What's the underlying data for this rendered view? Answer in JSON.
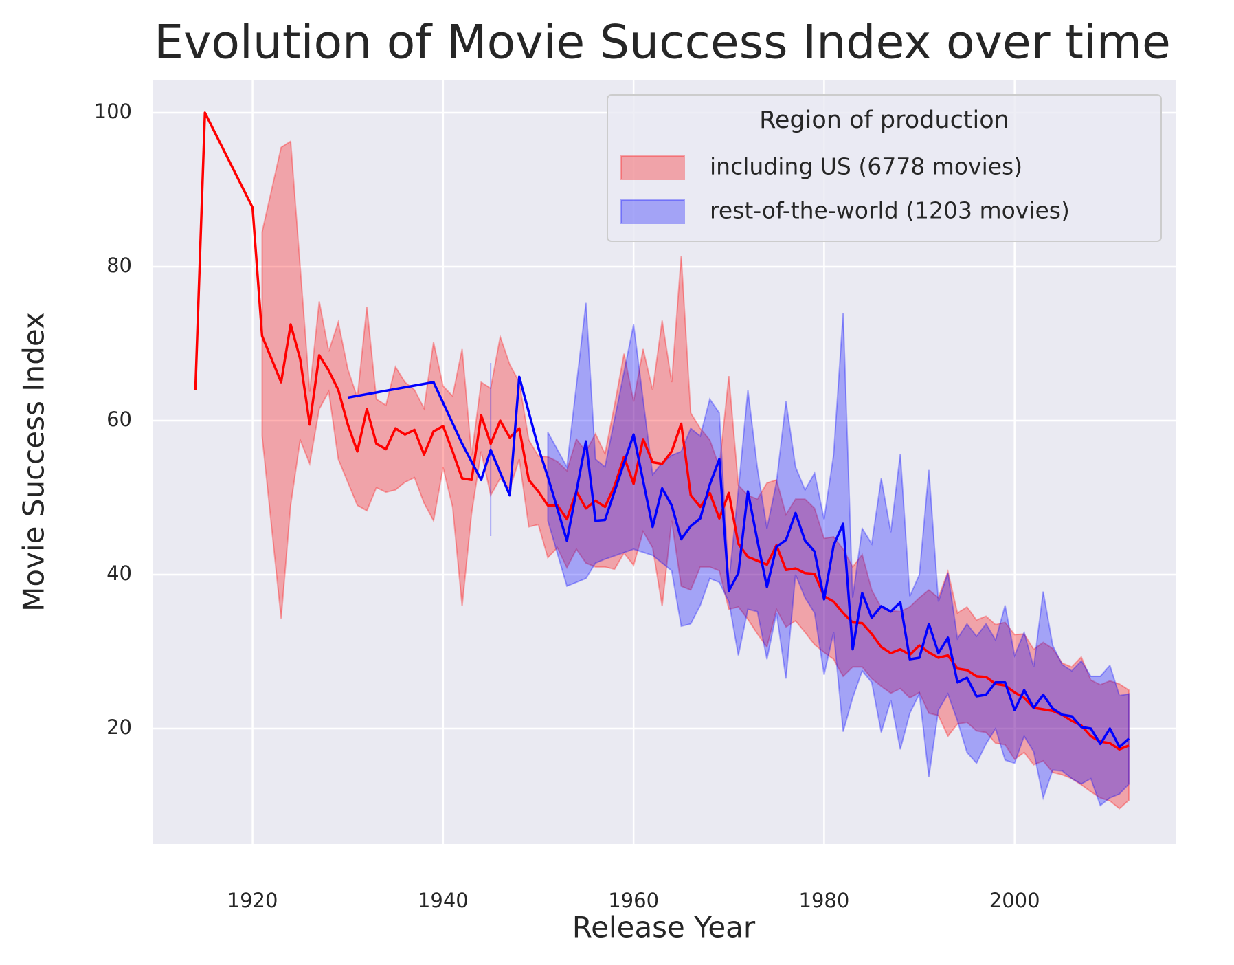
{
  "chart_data": {
    "type": "line_band",
    "title": "Evolution of Movie Success Index over time",
    "xlabel": "Release Year",
    "ylabel": "Movie Success Index",
    "legend_title": "Region of production",
    "legend_position": "upper right",
    "grid": true,
    "xlim": [
      1909.5,
      2016.9
    ],
    "ylim": [
      5,
      104.2
    ],
    "xticks": [
      1920,
      1940,
      1960,
      1980,
      2000
    ],
    "yticks": [
      20,
      40,
      60,
      80,
      100
    ],
    "series": [
      {
        "name": "including US (6778 movies)",
        "color": "#ff0000",
        "x": [
          1914,
          1915,
          1920,
          1921,
          1923,
          1924,
          1925,
          1926,
          1927,
          1928,
          1929,
          1930,
          1931,
          1932,
          1933,
          1934,
          1935,
          1936,
          1937,
          1938,
          1939,
          1940,
          1941,
          1942,
          1943,
          1944,
          1945,
          1946,
          1947,
          1948,
          1949,
          1950,
          1951,
          1952,
          1953,
          1954,
          1955,
          1956,
          1957,
          1958,
          1959,
          1960,
          1961,
          1962,
          1963,
          1964,
          1965,
          1966,
          1967,
          1968,
          1969,
          1970,
          1971,
          1972,
          1973,
          1974,
          1975,
          1976,
          1977,
          1978,
          1979,
          1980,
          1981,
          1982,
          1983,
          1984,
          1985,
          1986,
          1987,
          1988,
          1989,
          1990,
          1991,
          1992,
          1993,
          1994,
          1995,
          1996,
          1997,
          1998,
          1999,
          2000,
          2001,
          2002,
          2003,
          2004,
          2005,
          2006,
          2007,
          2008,
          2009,
          2010,
          2011,
          2012
        ],
        "values": [
          64,
          100,
          87.7,
          71,
          65,
          72.5,
          68,
          59.5,
          68.5,
          66.5,
          64,
          59.5,
          56,
          61.5,
          57,
          56.3,
          59,
          58.2,
          58.8,
          55.6,
          58.6,
          59.3,
          56,
          52.5,
          52.3,
          60.7,
          57,
          60,
          57.8,
          59,
          52.3,
          50.8,
          49,
          49,
          47.2,
          50.8,
          48.6,
          49.6,
          48.8,
          51.5,
          55.3,
          51.8,
          57.6,
          54.6,
          54.4,
          56,
          59.6,
          50.3,
          48.8,
          50.6,
          47.3,
          50.6,
          44,
          42.3,
          41.8,
          41.3,
          43.8,
          40.6,
          40.8,
          40.2,
          40.1,
          37.2,
          36.5,
          35,
          33.8,
          33.7,
          32.3,
          30.6,
          29.8,
          30.3,
          29.6,
          30.8,
          29.9,
          29.2,
          29.5,
          27.8,
          27.6,
          26.8,
          26.7,
          25.8,
          25.6,
          24.7,
          24,
          22.7,
          22.5,
          22.3,
          21.8,
          21,
          20.4,
          19,
          18.3,
          18.1,
          17.3,
          17.8
        ],
        "lower": [
          null,
          null,
          null,
          58,
          34.3,
          49,
          57.5,
          54.4,
          61.5,
          63.8,
          55,
          52,
          49,
          48.3,
          51.3,
          50.7,
          51,
          52,
          52.6,
          49.3,
          47,
          53.9,
          48.8,
          35.9,
          48,
          56,
          50.3,
          52.5,
          51.1,
          55,
          46.2,
          46.5,
          42.2,
          43.5,
          40.9,
          43.3,
          41.5,
          41,
          41,
          40.7,
          42.8,
          41.2,
          45.6,
          43.5,
          35.9,
          47,
          38.5,
          38,
          41,
          41,
          40.5,
          35.5,
          35.8,
          34.2,
          32.3,
          30.6,
          35.5,
          33.2,
          34,
          32.5,
          30.9,
          29.9,
          29,
          26.8,
          28,
          28,
          26.5,
          25.5,
          24.6,
          25.2,
          24,
          24.7,
          22,
          21.7,
          19,
          20.6,
          20.8,
          19.7,
          19.5,
          18.1,
          17.9,
          16,
          16.9,
          15.3,
          15.8,
          14.3,
          14,
          13.5,
          12.7,
          11.8,
          11,
          10.6,
          9.6,
          10.7
        ],
        "upper": [
          null,
          null,
          null,
          84.5,
          95.5,
          96.3,
          80,
          63.8,
          75.5,
          69,
          72.8,
          66.7,
          63,
          74.8,
          62.8,
          62,
          67,
          65,
          64,
          61.6,
          70.2,
          64.5,
          63.2,
          69.3,
          55.5,
          65,
          64.2,
          70.9,
          67.3,
          65,
          57.5,
          55.4,
          55.3,
          54.7,
          53.5,
          57.6,
          56,
          58.3,
          55.7,
          62,
          68.7,
          62.5,
          69.3,
          64,
          73,
          65,
          81.4,
          61,
          59,
          57.5,
          54,
          65.8,
          51.6,
          50.3,
          49.8,
          51.9,
          52.3,
          47.8,
          49.8,
          49.8,
          48.6,
          44.7,
          44.9,
          43.3,
          41,
          42.6,
          38,
          35.7,
          35.3,
          35.2,
          35.8,
          37,
          38,
          37,
          40.4,
          35,
          35.8,
          34.1,
          34.6,
          33.5,
          33.8,
          32.2,
          32.3,
          30.3,
          31.2,
          30.4,
          28.5,
          28,
          29.3,
          26.3,
          25.7,
          26.2,
          25.8,
          25
        ]
      },
      {
        "name": "rest-of-the-world (1203 movies)",
        "color": "#0000ff",
        "x": [
          1930,
          1939,
          1942,
          1944,
          1945,
          1947,
          1948,
          1950,
          1951,
          1953,
          1955,
          1956,
          1957,
          1960,
          1962,
          1963,
          1964,
          1965,
          1966,
          1967,
          1968,
          1969,
          1970,
          1971,
          1972,
          1973,
          1974,
          1975,
          1976,
          1977,
          1978,
          1979,
          1980,
          1981,
          1982,
          1983,
          1984,
          1985,
          1986,
          1987,
          1988,
          1989,
          1990,
          1991,
          1992,
          1993,
          1994,
          1995,
          1996,
          1997,
          1998,
          1999,
          2000,
          2001,
          2002,
          2003,
          2004,
          2005,
          2006,
          2007,
          2008,
          2009,
          2010,
          2011,
          2012
        ],
        "values": [
          63,
          65,
          57,
          52.3,
          56.2,
          50.3,
          65.7,
          56.5,
          52.7,
          44.4,
          57.3,
          47,
          47.1,
          58.2,
          46.2,
          51.2,
          49,
          44.6,
          46.3,
          47.3,
          51.7,
          55,
          37.9,
          40.2,
          50.8,
          44.4,
          38.4,
          43.6,
          44.5,
          48,
          44.4,
          43,
          36.8,
          43.8,
          46.6,
          30.3,
          37.6,
          34.4,
          35.9,
          35.2,
          36.4,
          29,
          29.2,
          33.6,
          29.8,
          31.8,
          26,
          26.6,
          24.2,
          24.4,
          26,
          26,
          22.4,
          25,
          22.7,
          24.4,
          22.6,
          21.8,
          21.6,
          20.2,
          20,
          18,
          20,
          17.6,
          18.7
        ],
        "lower": [
          null,
          null,
          null,
          null,
          45,
          null,
          null,
          null,
          47,
          38.5,
          39.5,
          41.5,
          42,
          43.3,
          42.5,
          41.5,
          40.5,
          33.3,
          33.6,
          36,
          39.5,
          39,
          36.5,
          29.5,
          35.5,
          35.2,
          29,
          35,
          26.5,
          40,
          37,
          35,
          27,
          32.5,
          19.6,
          24,
          27.5,
          26,
          19.5,
          23.7,
          17.3,
          22,
          24.5,
          13.7,
          22.4,
          24.5,
          21,
          16.9,
          15.5,
          18,
          20,
          15.9,
          15.5,
          19,
          17,
          11,
          14.6,
          14.5,
          13.5,
          12.8,
          13.5,
          10,
          11,
          11.5,
          12.8
        ],
        "upper": [
          null,
          null,
          null,
          null,
          67.5,
          null,
          null,
          null,
          58.5,
          54,
          75.3,
          55,
          54,
          72.5,
          53,
          54.5,
          55.5,
          56,
          59,
          58,
          62.8,
          61,
          39,
          51,
          64,
          53.8,
          46,
          52,
          62.5,
          54,
          51,
          53.2,
          47.2,
          55.6,
          74,
          37,
          46,
          44,
          52.5,
          45.5,
          55.7,
          37.2,
          40,
          53.6,
          36.5,
          40.2,
          31.7,
          33.6,
          32,
          33.6,
          31.5,
          36,
          29.5,
          32.5,
          28,
          37.8,
          30.8,
          28.3,
          27.5,
          28.8,
          26.8,
          26.8,
          28.2,
          24.3,
          24.5
        ]
      }
    ]
  }
}
